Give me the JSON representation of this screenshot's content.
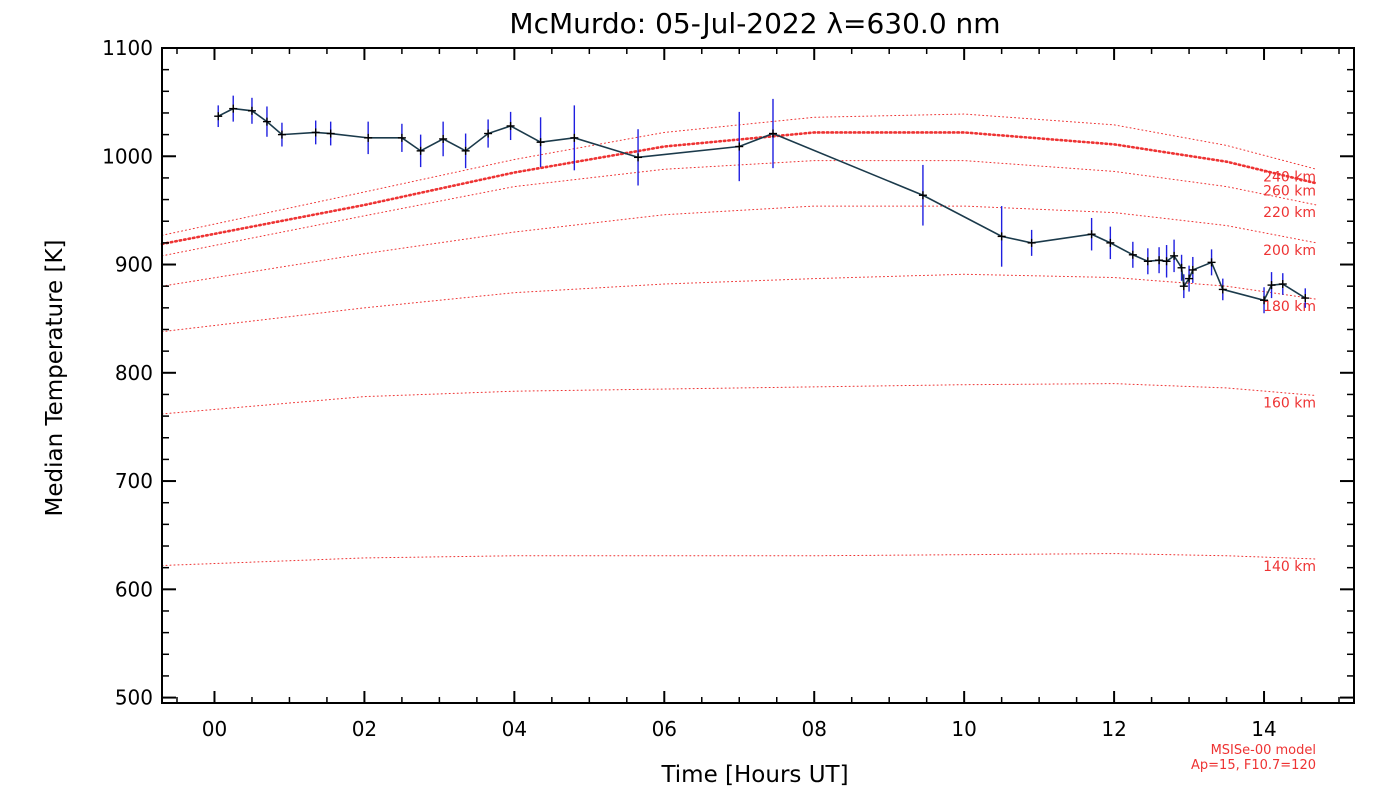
{
  "chart_data": {
    "type": "line",
    "title": "McMurdo: 05-Jul-2022 λ=630.0 nm",
    "xlabel": "Time [Hours UT]",
    "ylabel": "Median Temperature [K]",
    "xlim": [
      -0.7,
      15.2
    ],
    "ylim": [
      495,
      1100
    ],
    "xticks": [
      0,
      2,
      4,
      6,
      8,
      10,
      12,
      14
    ],
    "xtick_labels": [
      "00",
      "02",
      "04",
      "06",
      "08",
      "10",
      "12",
      "14"
    ],
    "yticks": [
      500,
      600,
      700,
      800,
      900,
      1000,
      1100
    ],
    "ytick_labels": [
      "500",
      "600",
      "700",
      "800",
      "900",
      "1000",
      "1100"
    ],
    "grid": false,
    "colors": {
      "data_line": "#1b3a4b",
      "error_bar": "#1f1fe0",
      "model": "#ee3333",
      "marker": "#000000"
    },
    "series": [
      {
        "points": [
          {
            "x": 0.05,
            "y": 1037,
            "err": 10
          },
          {
            "x": 0.25,
            "y": 1044,
            "err": 12
          },
          {
            "x": 0.5,
            "y": 1042,
            "err": 12
          },
          {
            "x": 0.7,
            "y": 1032,
            "err": 14
          },
          {
            "x": 0.9,
            "y": 1020,
            "err": 11
          },
          {
            "x": 1.35,
            "y": 1022,
            "err": 11
          },
          {
            "x": 1.55,
            "y": 1021,
            "err": 11
          },
          {
            "x": 2.05,
            "y": 1017,
            "err": 15
          },
          {
            "x": 2.5,
            "y": 1017,
            "err": 13
          },
          {
            "x": 2.75,
            "y": 1005,
            "err": 15
          },
          {
            "x": 3.05,
            "y": 1016,
            "err": 16
          },
          {
            "x": 3.35,
            "y": 1005,
            "err": 16
          },
          {
            "x": 3.65,
            "y": 1021,
            "err": 13
          },
          {
            "x": 3.95,
            "y": 1028,
            "err": 13
          },
          {
            "x": 4.35,
            "y": 1013,
            "err": 23
          },
          {
            "x": 4.8,
            "y": 1017,
            "err": 30
          },
          {
            "x": 5.65,
            "y": 999,
            "err": 26
          },
          {
            "x": 7.0,
            "y": 1009,
            "err": 32
          },
          {
            "x": 7.45,
            "y": 1021,
            "err": 32
          },
          {
            "x": 9.45,
            "y": 964,
            "err": 28
          },
          {
            "x": 10.5,
            "y": 926,
            "err": 28
          },
          {
            "x": 10.9,
            "y": 920,
            "err": 12
          },
          {
            "x": 11.7,
            "y": 928,
            "err": 15
          },
          {
            "x": 11.95,
            "y": 920,
            "err": 15
          },
          {
            "x": 12.25,
            "y": 909,
            "err": 12
          },
          {
            "x": 12.45,
            "y": 903,
            "err": 12
          },
          {
            "x": 12.6,
            "y": 904,
            "err": 12
          },
          {
            "x": 12.7,
            "y": 903,
            "err": 15
          },
          {
            "x": 12.8,
            "y": 908,
            "err": 15
          },
          {
            "x": 12.9,
            "y": 897,
            "err": 12
          },
          {
            "x": 12.93,
            "y": 880,
            "err": 11
          },
          {
            "x": 13.0,
            "y": 887,
            "err": 12
          },
          {
            "x": 13.05,
            "y": 895,
            "err": 12
          },
          {
            "x": 13.3,
            "y": 902,
            "err": 12
          },
          {
            "x": 13.45,
            "y": 877,
            "err": 10
          },
          {
            "x": 14.0,
            "y": 867,
            "err": 12
          },
          {
            "x": 14.1,
            "y": 881,
            "err": 12
          },
          {
            "x": 14.25,
            "y": 882,
            "err": 10
          },
          {
            "x": 14.55,
            "y": 869,
            "err": 9
          }
        ]
      }
    ],
    "model_curves": [
      {
        "label": "140 km",
        "x": [
          -0.7,
          2,
          4,
          6,
          8,
          10,
          12,
          13.5,
          14.7
        ],
        "y": [
          622,
          629,
          631,
          631,
          631,
          632,
          633,
          631,
          628
        ],
        "style": "thin"
      },
      {
        "label": "160 km",
        "x": [
          -0.7,
          2,
          4,
          6,
          8,
          10,
          12,
          13.5,
          14.7
        ],
        "y": [
          762,
          778,
          783,
          785,
          787,
          789,
          790,
          786,
          779
        ],
        "style": "thin"
      },
      {
        "label": "180 km",
        "x": [
          -0.7,
          2,
          4,
          6,
          8,
          10,
          12,
          13.5,
          14.7
        ],
        "y": [
          838,
          860,
          874,
          882,
          887,
          891,
          888,
          880,
          868
        ],
        "style": "thin"
      },
      {
        "label": "200 km",
        "x": [
          -0.7,
          2,
          4,
          6,
          8,
          10,
          12,
          13.5,
          14.7
        ],
        "y": [
          880,
          910,
          930,
          946,
          954,
          954,
          948,
          936,
          920
        ],
        "style": "thin"
      },
      {
        "label": "220 km",
        "x": [
          -0.7,
          2,
          4,
          6,
          8,
          10,
          12,
          13.5,
          14.7
        ],
        "y": [
          908,
          945,
          972,
          988,
          996,
          996,
          986,
          972,
          955
        ],
        "style": "thin"
      },
      {
        "label": "240 km",
        "x": [
          -0.7,
          2,
          4,
          6,
          8,
          10,
          12,
          13.5,
          14.7
        ],
        "y": [
          927,
          967,
          997,
          1022,
          1036,
          1039,
          1029,
          1010,
          988
        ],
        "style": "thin"
      },
      {
        "label": "260 km",
        "x": [
          -0.7,
          2,
          4,
          6,
          8,
          10,
          12,
          13.5,
          14.7
        ],
        "y": [
          919,
          955,
          985,
          1009,
          1022,
          1022,
          1011,
          995,
          975
        ],
        "style": "thick"
      }
    ],
    "model_note": [
      "MSISe-00 model",
      "Ap=15, F10.7=120"
    ]
  }
}
